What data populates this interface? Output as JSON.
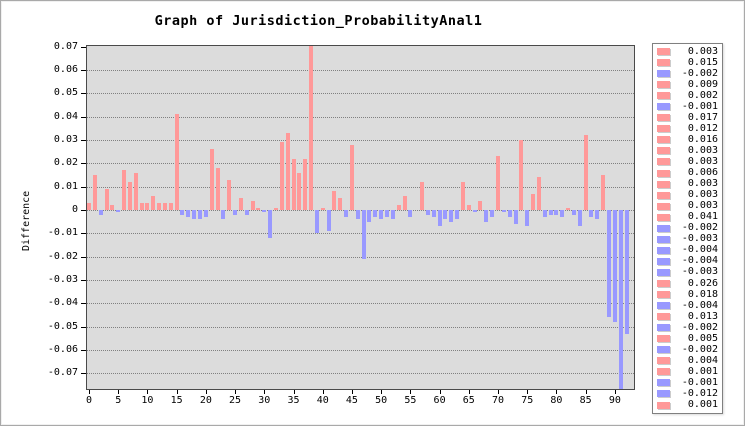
{
  "window": {
    "title": "Graph of Jurisdiction_ProbabilityAnal1"
  },
  "colors": {
    "positive_bar": "#ff9999",
    "negative_bar": "#9999ff",
    "plot_background": "#dcdcdc",
    "gridline": "#808080",
    "axis": "#4a4a4a",
    "legend_border": "#808080"
  },
  "chart_data": {
    "type": "bar",
    "title": "Graph of Jurisdiction_ProbabilityAnal1",
    "xlabel": "",
    "ylabel": "Difference",
    "x_range": [
      0,
      92
    ],
    "ylim": [
      -0.077,
      0.0703
    ],
    "grid": "horizontal-dotted",
    "legend_position": "right",
    "ytick_labels": [
      "0.07",
      "0.06",
      "0.05",
      "0.04",
      "0.03",
      "0.02",
      "0.01",
      "0",
      "-0.01",
      "-0.02",
      "-0.03",
      "-0.04",
      "-0.05",
      "-0.06",
      "-0.07"
    ],
    "xtick_labels": [
      "0",
      "5",
      "10",
      "15",
      "20",
      "25",
      "30",
      "35",
      "40",
      "45",
      "50",
      "55",
      "60",
      "65",
      "70",
      "75",
      "80",
      "85",
      "90"
    ],
    "values": [
      0.003,
      0.015,
      -0.002,
      0.009,
      0.002,
      -0.001,
      0.017,
      0.012,
      0.016,
      0.003,
      0.003,
      0.006,
      0.003,
      0.003,
      0.003,
      0.041,
      -0.002,
      -0.003,
      -0.004,
      -0.004,
      -0.003,
      0.026,
      0.018,
      -0.004,
      0.013,
      -0.002,
      0.005,
      -0.002,
      0.004,
      0.001,
      -0.001,
      -0.012,
      0.001,
      0.029,
      0.033,
      0.022,
      0.016,
      0.022,
      0.071,
      -0.01,
      0.001,
      -0.009,
      0.008,
      0.005,
      -0.003,
      0.028,
      -0.004,
      -0.021,
      -0.005,
      -0.003,
      -0.004,
      -0.003,
      -0.004,
      0.002,
      0.006,
      -0.003,
      0.0,
      0.012,
      -0.002,
      -0.003,
      -0.007,
      -0.004,
      -0.005,
      -0.004,
      0.012,
      0.002,
      -0.001,
      0.004,
      -0.005,
      -0.003,
      0.023,
      -0.001,
      -0.003,
      -0.006,
      0.03,
      -0.007,
      0.007,
      0.014,
      -0.003,
      -0.002,
      -0.002,
      -0.003,
      0.001,
      -0.002,
      -0.007,
      0.032,
      -0.003,
      -0.004,
      0.015,
      -0.046,
      -0.048,
      -0.078,
      -0.053
    ],
    "clipped_bars": {
      "index_38": "extends above 0.07 plot top",
      "index_91": "extends below -0.07 plot bottom"
    },
    "legend_entries": [
      "0.003",
      "0.015",
      "-0.002",
      "0.009",
      "0.002",
      "-0.001",
      "0.017",
      "0.012",
      "0.016",
      "0.003",
      "0.003",
      "0.006",
      "0.003",
      "0.003",
      "0.003",
      "0.041",
      "-0.002",
      "-0.003",
      "-0.004",
      "-0.004",
      "-0.003",
      "0.026",
      "0.018",
      "-0.004",
      "0.013",
      "-0.002",
      "0.005",
      "-0.002",
      "0.004",
      "0.001",
      "-0.001",
      "-0.012",
      "0.001"
    ]
  }
}
